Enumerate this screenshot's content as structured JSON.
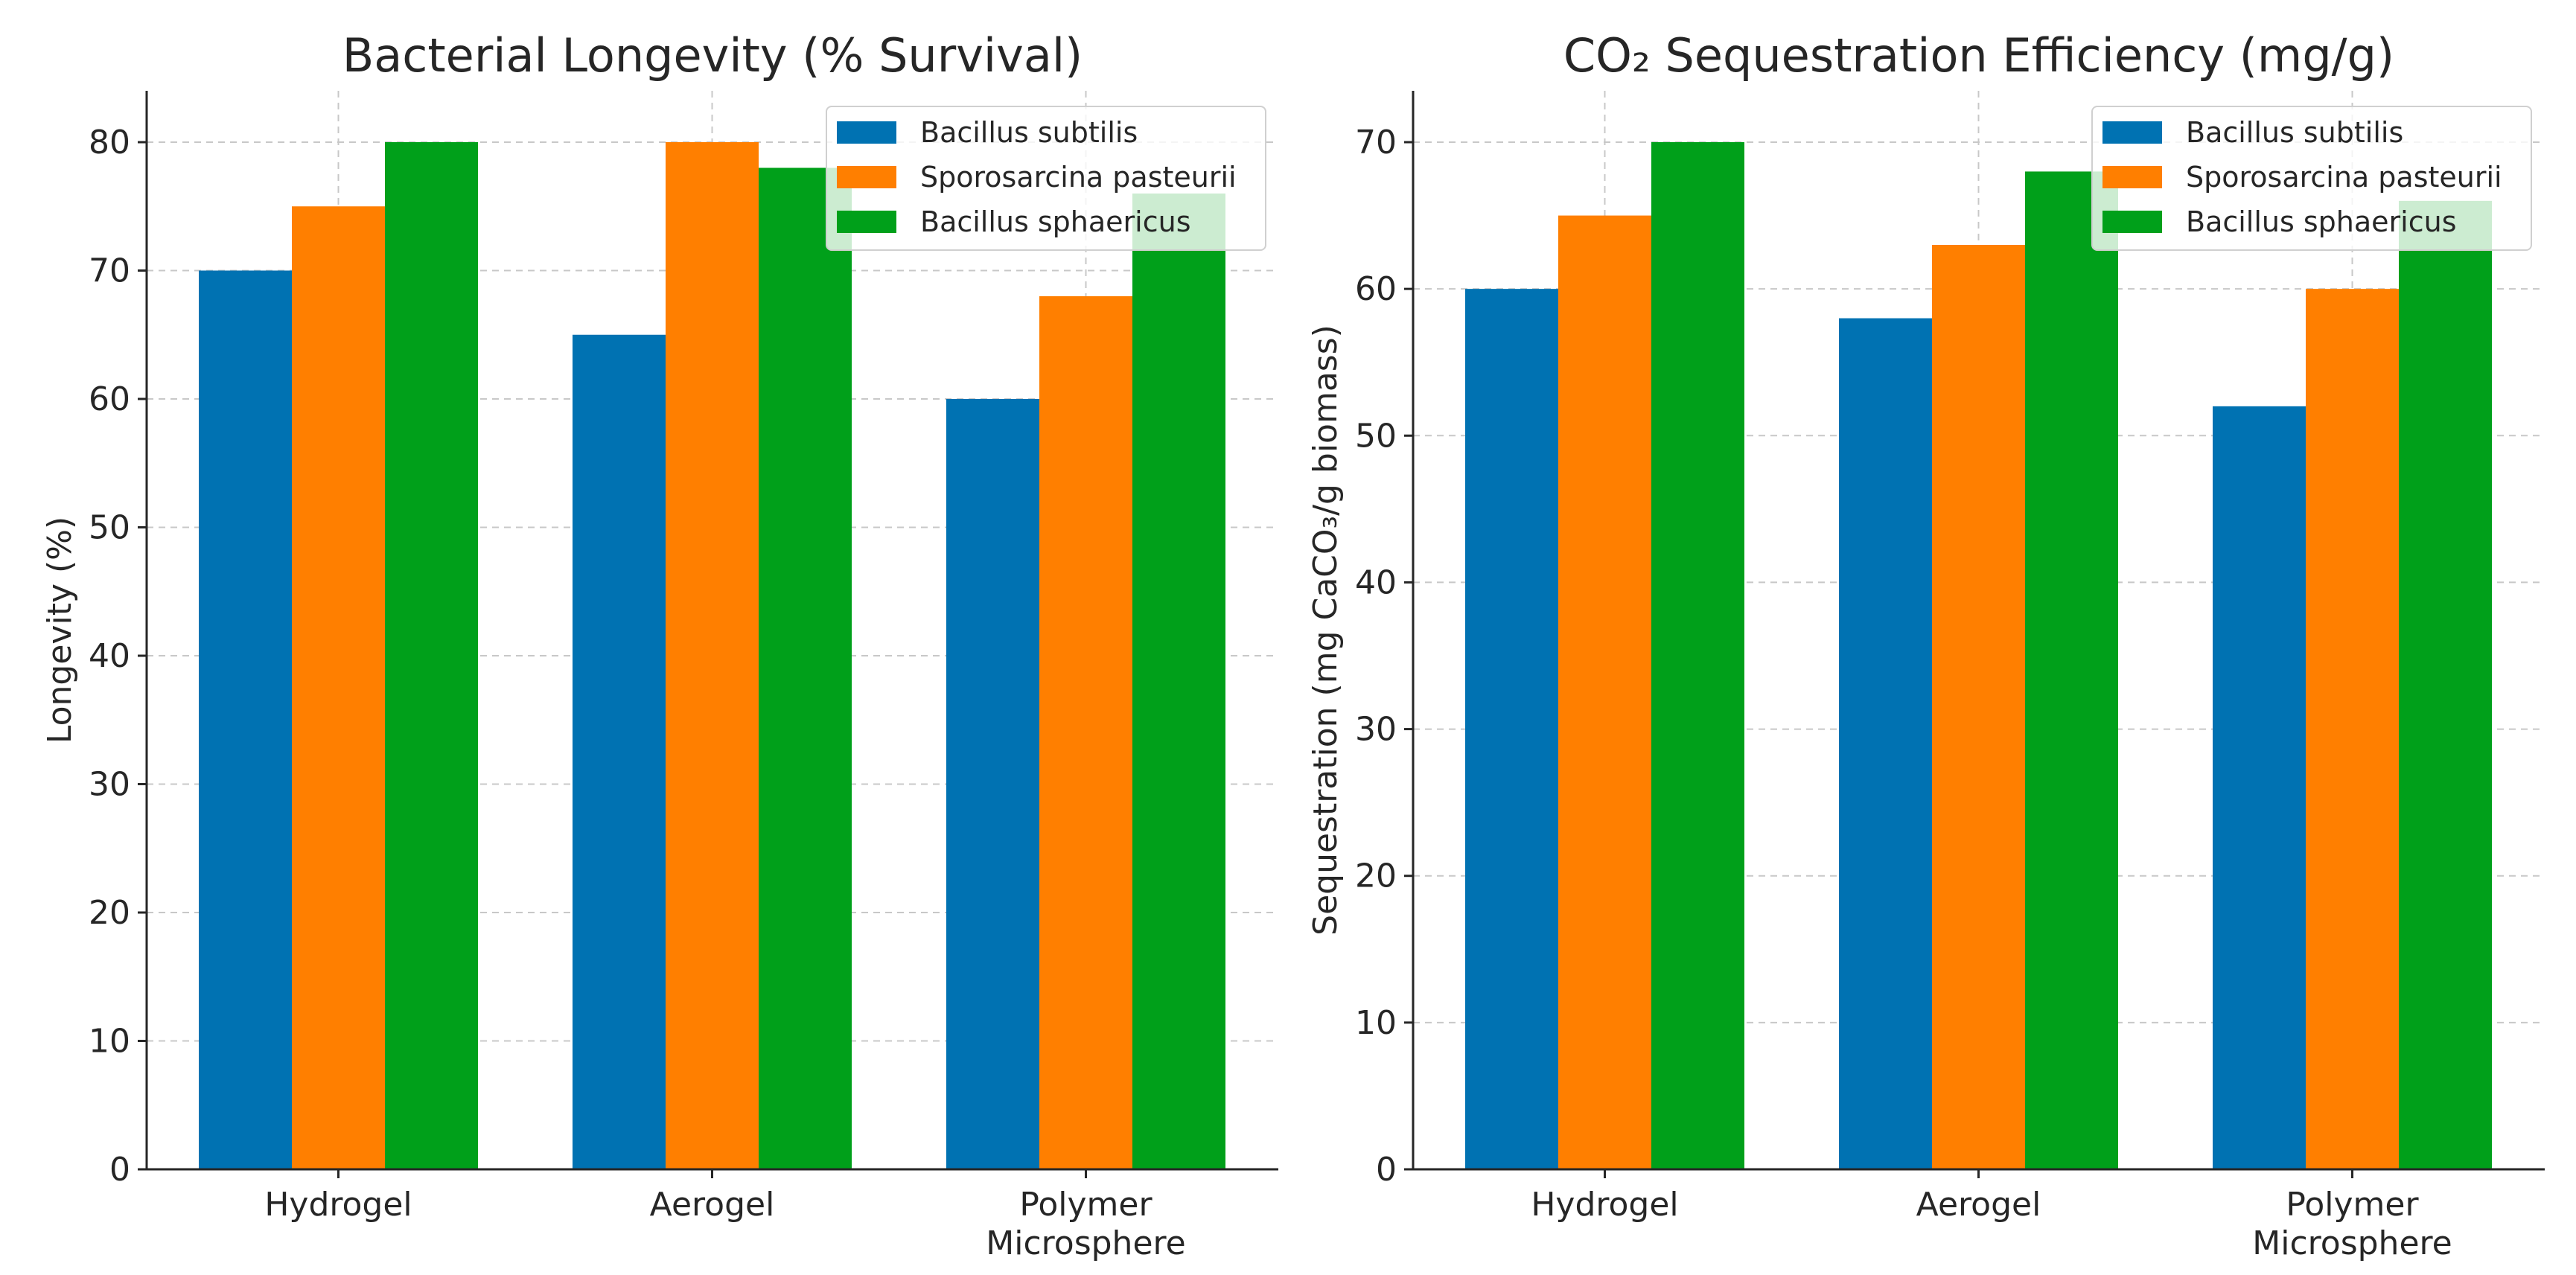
{
  "chart_data": [
    {
      "type": "bar",
      "title": "Bacterial Longevity (% Survival)",
      "xlabel": "",
      "ylabel": "Longevity (%)",
      "ylim": [
        0,
        84
      ],
      "yticks": [
        0,
        10,
        20,
        30,
        40,
        50,
        60,
        70,
        80
      ],
      "categories": [
        [
          "Hydrogel"
        ],
        [
          "Aerogel"
        ],
        [
          "Polymer",
          "Microsphere"
        ]
      ],
      "series": [
        {
          "name": "Bacillus subtilis",
          "color": "#0072b2",
          "values": [
            70,
            65,
            60
          ]
        },
        {
          "name": "Sporosarcina pasteurii",
          "color": "#ff7f00",
          "values": [
            75,
            80,
            68
          ]
        },
        {
          "name": "Bacillus sphaericus",
          "color": "#00a01a",
          "values": [
            80,
            78,
            76
          ]
        }
      ],
      "grid": true,
      "legend": "top-right"
    },
    {
      "type": "bar",
      "title": "CO₂ Sequestration Efficiency (mg/g)",
      "xlabel": "",
      "ylabel": "Sequestration (mg CaCO₃/g biomass)",
      "ylim": [
        0,
        73.5
      ],
      "yticks": [
        0,
        10,
        20,
        30,
        40,
        50,
        60,
        70
      ],
      "categories": [
        [
          "Hydrogel"
        ],
        [
          "Aerogel"
        ],
        [
          "Polymer",
          "Microsphere"
        ]
      ],
      "series": [
        {
          "name": "Bacillus subtilis",
          "color": "#0072b2",
          "values": [
            60,
            58,
            52
          ]
        },
        {
          "name": "Sporosarcina pasteurii",
          "color": "#ff7f00",
          "values": [
            65,
            63,
            60
          ]
        },
        {
          "name": "Bacillus sphaericus",
          "color": "#00a01a",
          "values": [
            70,
            68,
            66
          ]
        }
      ],
      "grid": true,
      "legend": "top-right"
    }
  ]
}
